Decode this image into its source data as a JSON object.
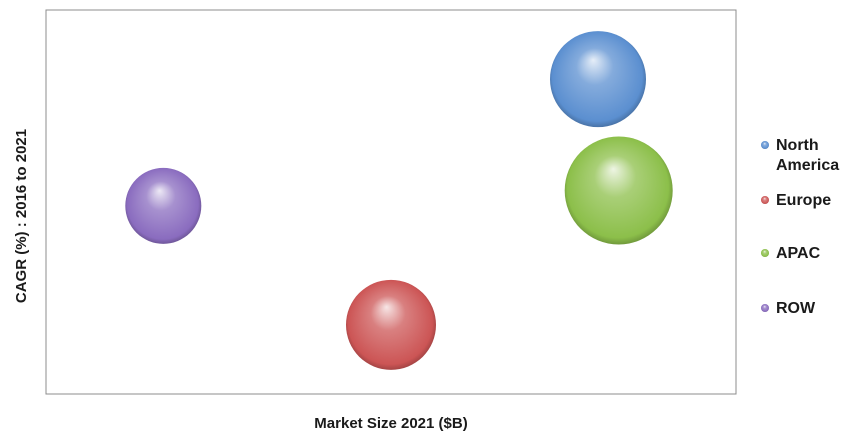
{
  "chart_data": {
    "type": "scatter",
    "xlabel": "Market Size 2021 ($B)",
    "ylabel": "CAGR (%) : 2016 to 2021",
    "xlim": [
      0,
      100
    ],
    "ylim": [
      0,
      100
    ],
    "grid": false,
    "legend_position": "right",
    "series": [
      {
        "name": "North America",
        "label_lines": [
          "North",
          "America"
        ],
        "x": 80,
        "y": 82,
        "size": 48,
        "color": "#5b8fd0"
      },
      {
        "name": "Europe",
        "label_lines": [
          "Europe"
        ],
        "x": 50,
        "y": 18,
        "size": 45,
        "color": "#cc5555"
      },
      {
        "name": "APAC",
        "label_lines": [
          "APAC"
        ],
        "x": 83,
        "y": 53,
        "size": 54,
        "color": "#8cbf4a"
      },
      {
        "name": "ROW",
        "label_lines": [
          "ROW"
        ],
        "x": 17,
        "y": 49,
        "size": 38,
        "color": "#8a6cbf"
      }
    ]
  }
}
